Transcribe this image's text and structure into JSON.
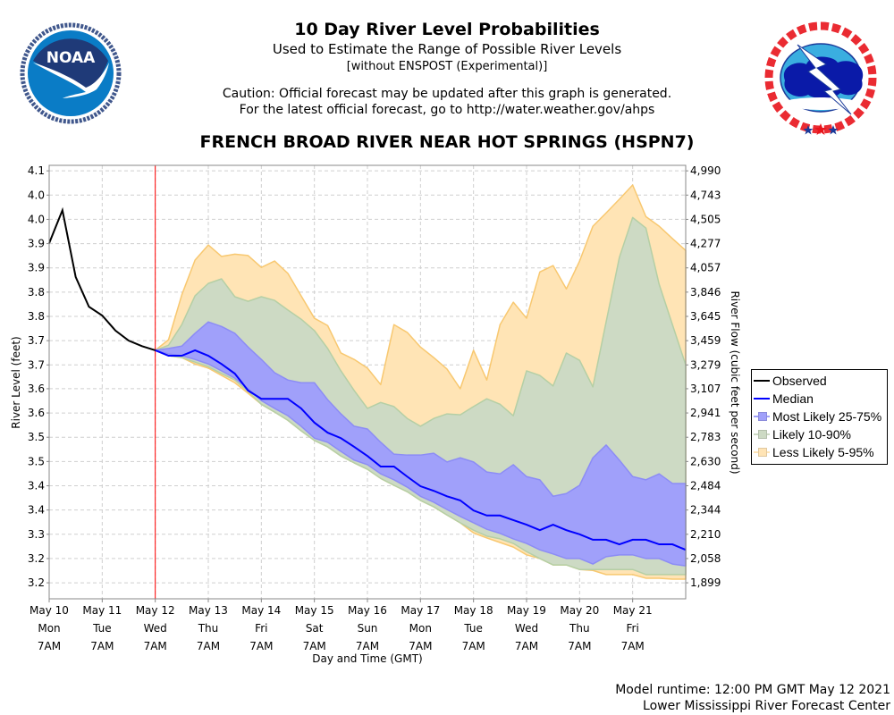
{
  "header": {
    "title": "10 Day River Level Probabilities",
    "subtitle": "Used to Estimate the Range of Possible River Levels",
    "subtitle2": "[without ENSPOST (Experimental)]",
    "caution1": "Caution: Official forecast may be updated after this graph is generated.",
    "caution2": "For the latest official forecast, go to http://water.weather.gov/ahps",
    "station": "FRENCH BROAD RIVER NEAR HOT SPRINGS (HSPN7)"
  },
  "logos": {
    "noaa": {
      "text": "NOAA",
      "ring_text": "NATIONAL OCEANIC AND ATMOSPHERIC ADMINISTRATION",
      "bottom_text": "U.S. DEPARTMENT OF COMMERCE"
    },
    "nws": {
      "text": "NATIONAL WEATHER SERVICE"
    }
  },
  "footer": {
    "runtime": "Model runtime: 12:00 PM GMT May 12 2021",
    "center": "Lower Mississippi River Forecast Center"
  },
  "legend": {
    "placement": "right",
    "items": [
      {
        "label": "Observed",
        "color": "#000000",
        "kind": "line"
      },
      {
        "label": "Median",
        "color": "#0000ff",
        "kind": "line"
      },
      {
        "label": "Most Likely 25-75%",
        "color": "#a0a0fa",
        "kind": "area"
      },
      {
        "label": "Likely 10-90%",
        "color": "#cddac4",
        "kind": "area"
      },
      {
        "label": "Less Likely 5-95%",
        "color": "#ffe4b5",
        "kind": "area"
      }
    ]
  },
  "chart_data": {
    "type": "area",
    "xlabel": "Day and Time (GMT)",
    "ylabel": "River Level (feet)",
    "y2label": "River Flow (cubic feet per second)",
    "xlim": [
      "2021-05-10T07:00Z",
      "2021-05-22T07:00Z"
    ],
    "ylim": [
      3.165,
      4.112
    ],
    "grid": true,
    "forecast_start": "2021-05-12T07:00Z",
    "colors": {
      "observed": "#000000",
      "median": "#0000ff",
      "band_25_75": "#a0a0fa",
      "band_10_90": "#cddac4",
      "band_5_95": "#ffe4b5",
      "forecast_start_line": "#ff0000"
    },
    "x_ticks": [
      {
        "t": "2021-05-10T07:00Z",
        "lines": [
          "May 10",
          "Mon",
          "7AM"
        ]
      },
      {
        "t": "2021-05-11T07:00Z",
        "lines": [
          "May 11",
          "Tue",
          "7AM"
        ]
      },
      {
        "t": "2021-05-12T07:00Z",
        "lines": [
          "May 12",
          "Wed",
          "7AM"
        ]
      },
      {
        "t": "2021-05-13T07:00Z",
        "lines": [
          "May 13",
          "Thu",
          "7AM"
        ]
      },
      {
        "t": "2021-05-14T07:00Z",
        "lines": [
          "May 14",
          "Fri",
          "7AM"
        ]
      },
      {
        "t": "2021-05-15T07:00Z",
        "lines": [
          "May 15",
          "Sat",
          "7AM"
        ]
      },
      {
        "t": "2021-05-16T07:00Z",
        "lines": [
          "May 16",
          "Sun",
          "7AM"
        ]
      },
      {
        "t": "2021-05-17T07:00Z",
        "lines": [
          "May 17",
          "Mon",
          "7AM"
        ]
      },
      {
        "t": "2021-05-18T07:00Z",
        "lines": [
          "May 18",
          "Tue",
          "7AM"
        ]
      },
      {
        "t": "2021-05-19T07:00Z",
        "lines": [
          "May 19",
          "Wed",
          "7AM"
        ]
      },
      {
        "t": "2021-05-20T07:00Z",
        "lines": [
          "May 20",
          "Thu",
          "7AM"
        ]
      },
      {
        "t": "2021-05-21T07:00Z",
        "lines": [
          "May 21",
          "Fri",
          "7AM"
        ]
      }
    ],
    "y_ticks": [
      {
        "v": 4.1,
        "label": "4.1",
        "flow": "4,990"
      },
      {
        "v": 4.047,
        "label": "4.0",
        "flow": "4,743"
      },
      {
        "v": 3.994,
        "label": "4.0",
        "flow": "4,505"
      },
      {
        "v": 3.941,
        "label": "3.9",
        "flow": "4,277"
      },
      {
        "v": 3.888,
        "label": "3.9",
        "flow": "4,057"
      },
      {
        "v": 3.835,
        "label": "3.8",
        "flow": "3,846"
      },
      {
        "v": 3.782,
        "label": "3.8",
        "flow": "3,645"
      },
      {
        "v": 3.729,
        "label": "3.7",
        "flow": "3,459"
      },
      {
        "v": 3.676,
        "label": "3.7",
        "flow": "3,279"
      },
      {
        "v": 3.624,
        "label": "3.6",
        "flow": "3,107"
      },
      {
        "v": 3.571,
        "label": "3.6",
        "flow": "2,941"
      },
      {
        "v": 3.518,
        "label": "3.5",
        "flow": "2,783"
      },
      {
        "v": 3.465,
        "label": "3.5",
        "flow": "2,630"
      },
      {
        "v": 3.412,
        "label": "3.4",
        "flow": "2,484"
      },
      {
        "v": 3.359,
        "label": "3.4",
        "flow": "2,344"
      },
      {
        "v": 3.306,
        "label": "3.3",
        "flow": "2,210"
      },
      {
        "v": 3.253,
        "label": "3.2",
        "flow": "2,058"
      },
      {
        "v": 3.2,
        "label": "3.2",
        "flow": "1,899"
      }
    ],
    "observed": {
      "x": [
        "2021-05-10T07:00Z",
        "2021-05-10T13:00Z",
        "2021-05-10T19:00Z",
        "2021-05-11T01:00Z",
        "2021-05-11T07:00Z",
        "2021-05-11T13:00Z",
        "2021-05-11T19:00Z",
        "2021-05-12T01:00Z",
        "2021-05-12T07:00Z"
      ],
      "y": [
        3.942,
        4.014,
        3.868,
        3.803,
        3.784,
        3.751,
        3.729,
        3.717,
        3.708
      ]
    },
    "forecast": {
      "x": [
        "2021-05-12T07:00Z",
        "2021-05-12T13:00Z",
        "2021-05-12T19:00Z",
        "2021-05-13T01:00Z",
        "2021-05-13T07:00Z",
        "2021-05-13T13:00Z",
        "2021-05-13T19:00Z",
        "2021-05-14T01:00Z",
        "2021-05-14T07:00Z",
        "2021-05-14T13:00Z",
        "2021-05-14T19:00Z",
        "2021-05-15T01:00Z",
        "2021-05-15T07:00Z",
        "2021-05-15T13:00Z",
        "2021-05-15T19:00Z",
        "2021-05-16T01:00Z",
        "2021-05-16T07:00Z",
        "2021-05-16T13:00Z",
        "2021-05-16T19:00Z",
        "2021-05-17T01:00Z",
        "2021-05-17T07:00Z",
        "2021-05-17T13:00Z",
        "2021-05-17T19:00Z",
        "2021-05-18T01:00Z",
        "2021-05-18T07:00Z",
        "2021-05-18T13:00Z",
        "2021-05-18T19:00Z",
        "2021-05-19T01:00Z",
        "2021-05-19T07:00Z",
        "2021-05-19T13:00Z",
        "2021-05-19T19:00Z",
        "2021-05-20T01:00Z",
        "2021-05-20T07:00Z",
        "2021-05-20T13:00Z",
        "2021-05-20T19:00Z",
        "2021-05-21T01:00Z",
        "2021-05-21T07:00Z",
        "2021-05-21T13:00Z",
        "2021-05-21T19:00Z",
        "2021-05-22T01:00Z",
        "2021-05-22T07:00Z"
      ],
      "p95": [
        3.708,
        3.731,
        3.829,
        3.905,
        3.938,
        3.913,
        3.918,
        3.915,
        3.889,
        3.903,
        3.876,
        3.827,
        3.778,
        3.762,
        3.702,
        3.688,
        3.669,
        3.633,
        3.764,
        3.747,
        3.715,
        3.692,
        3.667,
        3.624,
        3.708,
        3.643,
        3.764,
        3.813,
        3.778,
        3.879,
        3.893,
        3.842,
        3.903,
        3.979,
        4.008,
        4.038,
        4.069,
        4.0,
        3.979,
        3.952,
        3.926
      ],
      "p90": [
        3.708,
        3.719,
        3.764,
        3.827,
        3.854,
        3.864,
        3.825,
        3.815,
        3.825,
        3.817,
        3.796,
        3.776,
        3.751,
        3.712,
        3.663,
        3.62,
        3.581,
        3.594,
        3.585,
        3.559,
        3.542,
        3.559,
        3.569,
        3.567,
        3.585,
        3.602,
        3.59,
        3.565,
        3.663,
        3.653,
        3.63,
        3.702,
        3.686,
        3.628,
        3.77,
        3.911,
        3.998,
        3.975,
        3.852,
        3.764,
        3.676
      ],
      "p75": [
        3.708,
        3.712,
        3.717,
        3.745,
        3.77,
        3.76,
        3.745,
        3.715,
        3.688,
        3.659,
        3.643,
        3.637,
        3.637,
        3.6,
        3.569,
        3.542,
        3.536,
        3.507,
        3.481,
        3.479,
        3.479,
        3.483,
        3.464,
        3.473,
        3.464,
        3.442,
        3.438,
        3.458,
        3.432,
        3.425,
        3.389,
        3.395,
        3.413,
        3.473,
        3.501,
        3.468,
        3.432,
        3.425,
        3.438,
        3.417,
        3.417
      ],
      "median": [
        3.708,
        3.696,
        3.696,
        3.708,
        3.696,
        3.678,
        3.657,
        3.62,
        3.602,
        3.602,
        3.602,
        3.581,
        3.55,
        3.528,
        3.516,
        3.497,
        3.477,
        3.454,
        3.454,
        3.432,
        3.411,
        3.401,
        3.389,
        3.38,
        3.358,
        3.347,
        3.347,
        3.337,
        3.327,
        3.315,
        3.327,
        3.315,
        3.306,
        3.294,
        3.294,
        3.284,
        3.294,
        3.294,
        3.284,
        3.284,
        3.272
      ],
      "p25": [
        3.708,
        3.7,
        3.696,
        3.688,
        3.678,
        3.663,
        3.647,
        3.624,
        3.598,
        3.581,
        3.565,
        3.542,
        3.516,
        3.507,
        3.487,
        3.468,
        3.458,
        3.438,
        3.425,
        3.409,
        3.389,
        3.376,
        3.36,
        3.345,
        3.331,
        3.317,
        3.308,
        3.296,
        3.286,
        3.272,
        3.263,
        3.253,
        3.253,
        3.241,
        3.257,
        3.261,
        3.261,
        3.253,
        3.253,
        3.241,
        3.237
      ],
      "p10": [
        3.708,
        3.696,
        3.692,
        3.682,
        3.672,
        3.657,
        3.643,
        3.618,
        3.59,
        3.573,
        3.555,
        3.532,
        3.511,
        3.497,
        3.477,
        3.462,
        3.448,
        3.428,
        3.413,
        3.399,
        3.38,
        3.366,
        3.348,
        3.331,
        3.315,
        3.302,
        3.296,
        3.286,
        3.268,
        3.253,
        3.239,
        3.239,
        3.229,
        3.229,
        3.229,
        3.229,
        3.229,
        3.218,
        3.218,
        3.218,
        3.218
      ],
      "p5": [
        3.708,
        3.696,
        3.692,
        3.678,
        3.669,
        3.653,
        3.637,
        3.614,
        3.59,
        3.573,
        3.555,
        3.532,
        3.511,
        3.497,
        3.477,
        3.462,
        3.448,
        3.428,
        3.413,
        3.399,
        3.38,
        3.366,
        3.348,
        3.331,
        3.309,
        3.298,
        3.288,
        3.278,
        3.261,
        3.253,
        3.239,
        3.239,
        3.229,
        3.227,
        3.218,
        3.218,
        3.218,
        3.21,
        3.21,
        3.208,
        3.208
      ]
    }
  }
}
